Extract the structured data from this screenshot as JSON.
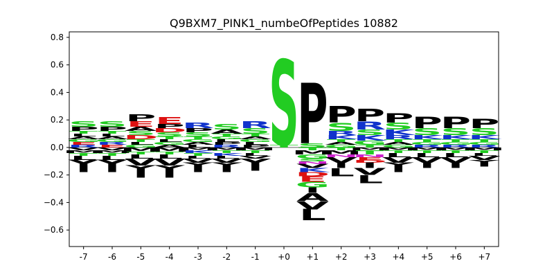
{
  "chart_data": {
    "type": "sequence-logo",
    "title": "Q9BXM7_PINK1_numbeOfPeptides 10882",
    "xlabel": "",
    "ylabel": "",
    "ylim": [
      -0.72,
      0.84
    ],
    "yticks": [
      -0.6,
      -0.4,
      -0.2,
      0.0,
      0.2,
      0.4,
      0.6,
      0.8
    ],
    "ytick_labels": [
      "−0.6",
      "−0.4",
      "−0.2",
      "0.0",
      "0.2",
      "0.4",
      "0.6",
      "0.8"
    ],
    "positions": [
      "-7",
      "-6",
      "-5",
      "-4",
      "-3",
      "-2",
      "-1",
      "+0",
      "+1",
      "+2",
      "+3",
      "+4",
      "+5",
      "+6",
      "+7"
    ],
    "colors": {
      "S": "#22cc22",
      "T": "#22cc22",
      "G": "#22cc22",
      "Y": "#000000",
      "P": "#000000",
      "A": "#000000",
      "V": "#000000",
      "L": "#000000",
      "I": "#000000",
      "M": "#000000",
      "F": "#000000",
      "W": "#000000",
      "C": "#000000",
      "R": "#1133cc",
      "K": "#1133cc",
      "H": "#1133cc",
      "E": "#dd1111",
      "D": "#dd1111",
      "N": "#cc22cc",
      "Q": "#cc22cc"
    },
    "stacks": [
      {
        "pos": "-7",
        "positive": [
          [
            "S",
            0.04
          ],
          [
            "P",
            0.03
          ],
          [
            "R",
            0.02
          ],
          [
            "E",
            0.02
          ],
          [
            "G",
            0.02
          ],
          [
            "A",
            0.02
          ],
          [
            "L",
            0.02
          ],
          [
            "T",
            0.02
          ]
        ],
        "negative": [
          [
            "V",
            0.02
          ],
          [
            "M",
            0.02
          ],
          [
            "T",
            0.02
          ],
          [
            "L",
            0.03
          ],
          [
            "Y",
            0.05
          ],
          [
            "I",
            0.04
          ]
        ]
      },
      {
        "pos": "-6",
        "positive": [
          [
            "S",
            0.04
          ],
          [
            "P",
            0.03
          ],
          [
            "E",
            0.02
          ],
          [
            "R",
            0.02
          ],
          [
            "G",
            0.02
          ],
          [
            "A",
            0.02
          ],
          [
            "L",
            0.02
          ],
          [
            "T",
            0.02
          ]
        ],
        "negative": [
          [
            "V",
            0.02
          ],
          [
            "M",
            0.02
          ],
          [
            "T",
            0.02
          ],
          [
            "L",
            0.03
          ],
          [
            "Y",
            0.05
          ],
          [
            "I",
            0.04
          ]
        ]
      },
      {
        "pos": "-5",
        "positive": [
          [
            "P",
            0.05
          ],
          [
            "E",
            0.04
          ],
          [
            "D",
            0.03
          ],
          [
            "S",
            0.03
          ],
          [
            "G",
            0.02
          ],
          [
            "A",
            0.03
          ],
          [
            "L",
            0.02
          ],
          [
            "T",
            0.02
          ]
        ],
        "negative": [
          [
            "M",
            0.03
          ],
          [
            "T",
            0.02
          ],
          [
            "L",
            0.03
          ],
          [
            "V",
            0.05
          ],
          [
            "Y",
            0.04
          ],
          [
            "I",
            0.05
          ]
        ]
      },
      {
        "pos": "-4",
        "positive": [
          [
            "E",
            0.05
          ],
          [
            "S",
            0.03
          ],
          [
            "D",
            0.03
          ],
          [
            "P",
            0.03
          ],
          [
            "A",
            0.02
          ],
          [
            "G",
            0.02
          ],
          [
            "L",
            0.02
          ],
          [
            "T",
            0.02
          ]
        ],
        "negative": [
          [
            "M",
            0.03
          ],
          [
            "T",
            0.02
          ],
          [
            "L",
            0.03
          ],
          [
            "V",
            0.05
          ],
          [
            "Y",
            0.04
          ],
          [
            "I",
            0.05
          ]
        ]
      },
      {
        "pos": "-3",
        "positive": [
          [
            "R",
            0.04
          ],
          [
            "S",
            0.03
          ],
          [
            "P",
            0.03
          ],
          [
            "L",
            0.02
          ],
          [
            "A",
            0.02
          ],
          [
            "G",
            0.02
          ],
          [
            "T",
            0.02
          ]
        ],
        "negative": [
          [
            "M",
            0.02
          ],
          [
            "K",
            0.02
          ],
          [
            "T",
            0.02
          ],
          [
            "L",
            0.02
          ],
          [
            "V",
            0.03
          ],
          [
            "Y",
            0.03
          ],
          [
            "I",
            0.04
          ]
        ]
      },
      {
        "pos": "-2",
        "positive": [
          [
            "S",
            0.04
          ],
          [
            "A",
            0.03
          ],
          [
            "R",
            0.02
          ],
          [
            "P",
            0.02
          ],
          [
            "L",
            0.02
          ],
          [
            "G",
            0.02
          ],
          [
            "T",
            0.02
          ]
        ],
        "negative": [
          [
            "M",
            0.02
          ],
          [
            "T",
            0.02
          ],
          [
            "K",
            0.02
          ],
          [
            "L",
            0.02
          ],
          [
            "V",
            0.03
          ],
          [
            "Y",
            0.03
          ],
          [
            "I",
            0.04
          ]
        ]
      },
      {
        "pos": "-1",
        "positive": [
          [
            "R",
            0.05
          ],
          [
            "S",
            0.04
          ],
          [
            "P",
            0.02
          ],
          [
            "L",
            0.02
          ],
          [
            "G",
            0.02
          ],
          [
            "A",
            0.02
          ],
          [
            "T",
            0.02
          ]
        ],
        "negative": [
          [
            "M",
            0.02
          ],
          [
            "T",
            0.02
          ],
          [
            "L",
            0.02
          ],
          [
            "V",
            0.02
          ],
          [
            "Y",
            0.05
          ],
          [
            "I",
            0.04
          ]
        ]
      },
      {
        "pos": "+0",
        "positive": [
          [
            "S",
            0.62
          ],
          [
            "T",
            0.02
          ]
        ],
        "negative": []
      },
      {
        "pos": "+1",
        "positive": [
          [
            "P",
            0.44
          ],
          [
            "S",
            0.03
          ]
        ],
        "negative": [
          [
            "T",
            0.02
          ],
          [
            "M",
            0.03
          ],
          [
            "G",
            0.03
          ],
          [
            "S",
            0.02
          ],
          [
            "N",
            0.02
          ],
          [
            "V",
            0.03
          ],
          [
            "K",
            0.03
          ],
          [
            "D",
            0.03
          ],
          [
            "E",
            0.04
          ],
          [
            "G",
            0.04
          ],
          [
            "I",
            0.04
          ],
          [
            "A",
            0.06
          ],
          [
            "V",
            0.06
          ],
          [
            "L",
            0.08
          ]
        ]
      },
      {
        "pos": "+2",
        "positive": [
          [
            "P",
            0.12
          ],
          [
            "S",
            0.06
          ],
          [
            "K",
            0.03
          ],
          [
            "R",
            0.03
          ],
          [
            "G",
            0.02
          ],
          [
            "A",
            0.02
          ],
          [
            "T",
            0.02
          ]
        ],
        "negative": [
          [
            "T",
            0.02
          ],
          [
            "M",
            0.03
          ],
          [
            "N",
            0.02
          ],
          [
            "V",
            0.04
          ],
          [
            "I",
            0.04
          ],
          [
            "L",
            0.06
          ]
        ]
      },
      {
        "pos": "+3",
        "positive": [
          [
            "P",
            0.09
          ],
          [
            "R",
            0.06
          ],
          [
            "K",
            0.04
          ],
          [
            "S",
            0.04
          ],
          [
            "G",
            0.03
          ],
          [
            "T",
            0.02
          ]
        ],
        "negative": [
          [
            "M",
            0.02
          ],
          [
            "T",
            0.03
          ],
          [
            "N",
            0.02
          ],
          [
            "E",
            0.02
          ],
          [
            "D",
            0.02
          ],
          [
            "I",
            0.04
          ],
          [
            "V",
            0.05
          ],
          [
            "L",
            0.06
          ]
        ]
      },
      {
        "pos": "+4",
        "positive": [
          [
            "P",
            0.07
          ],
          [
            "S",
            0.05
          ],
          [
            "K",
            0.04
          ],
          [
            "R",
            0.03
          ],
          [
            "G",
            0.02
          ],
          [
            "A",
            0.02
          ],
          [
            "T",
            0.02
          ]
        ],
        "negative": [
          [
            "M",
            0.02
          ],
          [
            "T",
            0.02
          ],
          [
            "L",
            0.03
          ],
          [
            "V",
            0.04
          ],
          [
            "Y",
            0.03
          ],
          [
            "I",
            0.04
          ]
        ]
      },
      {
        "pos": "+5",
        "positive": [
          [
            "P",
            0.08
          ],
          [
            "S",
            0.05
          ],
          [
            "K",
            0.03
          ],
          [
            "R",
            0.02
          ],
          [
            "G",
            0.02
          ],
          [
            "T",
            0.02
          ]
        ],
        "negative": [
          [
            "M",
            0.02
          ],
          [
            "T",
            0.02
          ],
          [
            "L",
            0.03
          ],
          [
            "V",
            0.04
          ],
          [
            "I",
            0.04
          ]
        ]
      },
      {
        "pos": "+6",
        "positive": [
          [
            "P",
            0.08
          ],
          [
            "S",
            0.05
          ],
          [
            "K",
            0.03
          ],
          [
            "R",
            0.02
          ],
          [
            "G",
            0.02
          ],
          [
            "T",
            0.02
          ]
        ],
        "negative": [
          [
            "M",
            0.02
          ],
          [
            "T",
            0.02
          ],
          [
            "L",
            0.03
          ],
          [
            "V",
            0.04
          ],
          [
            "I",
            0.04
          ]
        ]
      },
      {
        "pos": "+7",
        "positive": [
          [
            "P",
            0.07
          ],
          [
            "S",
            0.05
          ],
          [
            "K",
            0.03
          ],
          [
            "R",
            0.02
          ],
          [
            "G",
            0.02
          ],
          [
            "T",
            0.02
          ]
        ],
        "negative": [
          [
            "M",
            0.02
          ],
          [
            "T",
            0.02
          ],
          [
            "L",
            0.02
          ],
          [
            "V",
            0.03
          ],
          [
            "Y",
            0.02
          ],
          [
            "I",
            0.03
          ]
        ]
      }
    ],
    "grid": false,
    "legend": "none"
  }
}
